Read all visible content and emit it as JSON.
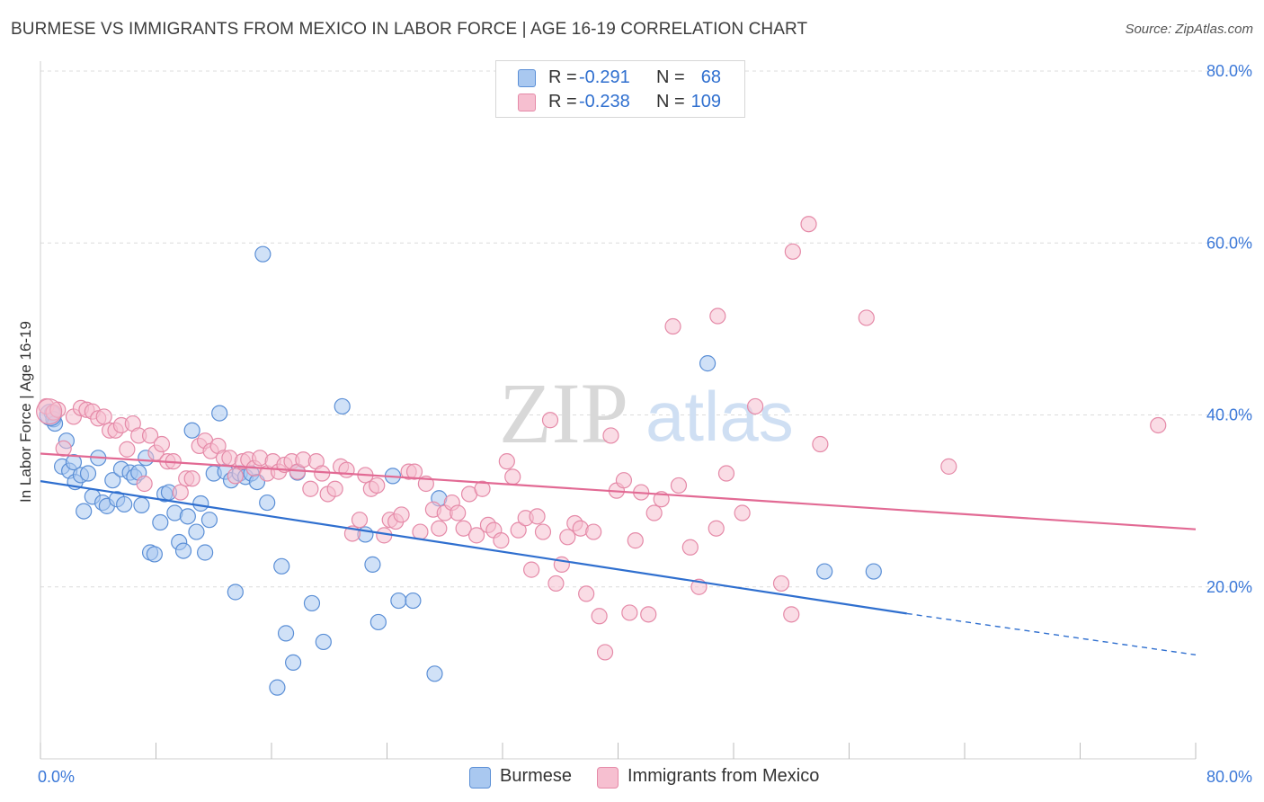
{
  "header": {
    "title": "BURMESE VS IMMIGRANTS FROM MEXICO IN LABOR FORCE | AGE 16-19 CORRELATION CHART",
    "source": "Source: ZipAtlas.com"
  },
  "watermark": {
    "zip": "ZIP",
    "atlas": "atlas"
  },
  "legend": {
    "rows": [
      {
        "r_label": "R =",
        "r_value": "-0.291",
        "n_label": "N =",
        "n_value": "68"
      },
      {
        "r_label": "R =",
        "r_value": "-0.238",
        "n_label": "N =",
        "n_value": "109"
      }
    ]
  },
  "colors": {
    "blue_fill": "#a9c8f0",
    "blue_stroke": "#5b8fd6",
    "blue_line": "#2f6fcf",
    "pink_fill": "#f6bfd0",
    "pink_stroke": "#e58aa8",
    "pink_line": "#e26a94",
    "grid": "#dcdcdc",
    "axis_text": "#3b78d8"
  },
  "chart_data": {
    "type": "scatter",
    "title": "BURMESE VS IMMIGRANTS FROM MEXICO IN LABOR FORCE | AGE 16-19 CORRELATION CHART",
    "xlabel": "",
    "ylabel": "In Labor Force | Age 16-19",
    "xlim": [
      0,
      80
    ],
    "ylim": [
      0,
      80
    ],
    "x_tick_labels": [
      "0.0%",
      "80.0%"
    ],
    "y_ticks": [
      20,
      40,
      60,
      80
    ],
    "y_tick_labels": [
      "20.0%",
      "40.0%",
      "60.0%",
      "80.0%"
    ],
    "grid": true,
    "legend_position": "top-center",
    "series": [
      {
        "name": "Burmese",
        "r": -0.291,
        "n": 68,
        "trend": {
          "x": [
            0,
            60
          ],
          "y": [
            32.3,
            16.9
          ],
          "dashed_to": [
            80,
            12.1
          ]
        },
        "points": [
          [
            0.8,
            40.2
          ],
          [
            0.9,
            39.5
          ],
          [
            1.0,
            39.0
          ],
          [
            1.5,
            34.0
          ],
          [
            1.8,
            37.0
          ],
          [
            2.0,
            33.5
          ],
          [
            2.3,
            34.5
          ],
          [
            2.4,
            32.2
          ],
          [
            2.8,
            33.0
          ],
          [
            3.0,
            28.8
          ],
          [
            3.3,
            33.2
          ],
          [
            3.6,
            30.5
          ],
          [
            4.0,
            35.0
          ],
          [
            4.3,
            29.8
          ],
          [
            4.6,
            29.4
          ],
          [
            5.0,
            32.4
          ],
          [
            5.3,
            30.2
          ],
          [
            5.6,
            33.7
          ],
          [
            5.8,
            29.6
          ],
          [
            6.2,
            33.3
          ],
          [
            6.5,
            32.8
          ],
          [
            6.8,
            33.3
          ],
          [
            7.0,
            29.5
          ],
          [
            7.3,
            35.0
          ],
          [
            7.6,
            24.0
          ],
          [
            7.9,
            23.8
          ],
          [
            8.3,
            27.5
          ],
          [
            8.6,
            30.8
          ],
          [
            8.9,
            31.0
          ],
          [
            9.3,
            28.6
          ],
          [
            9.6,
            25.2
          ],
          [
            9.9,
            24.2
          ],
          [
            10.2,
            28.2
          ],
          [
            10.5,
            38.2
          ],
          [
            10.8,
            26.4
          ],
          [
            11.1,
            29.7
          ],
          [
            11.4,
            24.0
          ],
          [
            11.7,
            27.8
          ],
          [
            12.0,
            33.2
          ],
          [
            12.4,
            40.2
          ],
          [
            12.8,
            33.4
          ],
          [
            13.2,
            32.4
          ],
          [
            13.5,
            19.4
          ],
          [
            13.8,
            33.2
          ],
          [
            14.2,
            32.8
          ],
          [
            14.6,
            33.2
          ],
          [
            15.0,
            32.2
          ],
          [
            15.4,
            58.7
          ],
          [
            15.7,
            29.8
          ],
          [
            16.4,
            8.3
          ],
          [
            16.7,
            22.4
          ],
          [
            17.0,
            14.6
          ],
          [
            17.5,
            11.2
          ],
          [
            17.8,
            33.3
          ],
          [
            18.8,
            18.1
          ],
          [
            19.6,
            13.6
          ],
          [
            20.9,
            41.0
          ],
          [
            22.5,
            26.1
          ],
          [
            23.0,
            22.6
          ],
          [
            23.4,
            15.9
          ],
          [
            24.4,
            32.9
          ],
          [
            24.8,
            18.4
          ],
          [
            25.8,
            18.4
          ],
          [
            27.3,
            9.9
          ],
          [
            27.6,
            30.3
          ],
          [
            46.2,
            46.0
          ],
          [
            54.3,
            21.8
          ],
          [
            57.7,
            21.8
          ]
        ]
      },
      {
        "name": "Immigrants from Mexico",
        "r": -0.238,
        "n": 109,
        "trend": {
          "x": [
            0,
            80
          ],
          "y": [
            35.5,
            26.7
          ]
        },
        "points": [
          [
            0.4,
            41.0
          ],
          [
            0.9,
            40.3
          ],
          [
            1.2,
            40.6
          ],
          [
            1.6,
            36.1
          ],
          [
            2.3,
            39.8
          ],
          [
            2.8,
            40.8
          ],
          [
            3.2,
            40.6
          ],
          [
            3.6,
            40.4
          ],
          [
            4.0,
            39.6
          ],
          [
            4.4,
            39.8
          ],
          [
            4.8,
            38.2
          ],
          [
            5.2,
            38.2
          ],
          [
            5.6,
            38.8
          ],
          [
            6.0,
            36.0
          ],
          [
            6.4,
            39.0
          ],
          [
            6.8,
            37.6
          ],
          [
            7.2,
            32.0
          ],
          [
            7.6,
            37.6
          ],
          [
            8.0,
            35.6
          ],
          [
            8.4,
            36.6
          ],
          [
            8.8,
            34.6
          ],
          [
            9.2,
            34.6
          ],
          [
            9.7,
            31.0
          ],
          [
            10.1,
            32.6
          ],
          [
            10.5,
            32.6
          ],
          [
            11.0,
            36.4
          ],
          [
            11.4,
            37.0
          ],
          [
            11.8,
            35.8
          ],
          [
            12.3,
            36.4
          ],
          [
            12.7,
            35.0
          ],
          [
            13.1,
            35.0
          ],
          [
            13.5,
            32.9
          ],
          [
            14.0,
            34.6
          ],
          [
            14.4,
            34.8
          ],
          [
            14.8,
            33.8
          ],
          [
            15.2,
            35.0
          ],
          [
            15.7,
            33.2
          ],
          [
            16.1,
            34.6
          ],
          [
            16.5,
            33.4
          ],
          [
            16.9,
            34.2
          ],
          [
            17.4,
            34.6
          ],
          [
            17.8,
            33.4
          ],
          [
            18.2,
            34.8
          ],
          [
            18.7,
            31.4
          ],
          [
            19.1,
            34.6
          ],
          [
            19.5,
            33.2
          ],
          [
            19.9,
            30.8
          ],
          [
            20.4,
            31.4
          ],
          [
            20.8,
            34.0
          ],
          [
            21.2,
            33.6
          ],
          [
            21.6,
            26.2
          ],
          [
            22.1,
            27.8
          ],
          [
            22.5,
            33.0
          ],
          [
            22.9,
            31.4
          ],
          [
            23.3,
            31.8
          ],
          [
            23.8,
            26.0
          ],
          [
            24.2,
            27.8
          ],
          [
            24.6,
            27.6
          ],
          [
            25.0,
            28.4
          ],
          [
            25.5,
            33.4
          ],
          [
            25.9,
            33.4
          ],
          [
            26.3,
            26.4
          ],
          [
            26.7,
            32.0
          ],
          [
            27.2,
            29.0
          ],
          [
            27.6,
            26.8
          ],
          [
            28.0,
            28.6
          ],
          [
            28.5,
            29.8
          ],
          [
            28.9,
            28.6
          ],
          [
            29.3,
            26.8
          ],
          [
            29.7,
            30.8
          ],
          [
            30.2,
            26.0
          ],
          [
            30.6,
            31.4
          ],
          [
            31.0,
            27.2
          ],
          [
            31.4,
            26.6
          ],
          [
            31.9,
            25.4
          ],
          [
            32.3,
            34.6
          ],
          [
            32.7,
            32.8
          ],
          [
            33.1,
            26.6
          ],
          [
            33.6,
            28.0
          ],
          [
            34.0,
            22.0
          ],
          [
            34.4,
            28.2
          ],
          [
            34.8,
            26.4
          ],
          [
            35.3,
            39.4
          ],
          [
            35.7,
            20.4
          ],
          [
            36.1,
            22.6
          ],
          [
            36.5,
            25.8
          ],
          [
            37.0,
            27.4
          ],
          [
            37.4,
            26.8
          ],
          [
            37.8,
            19.2
          ],
          [
            38.3,
            26.4
          ],
          [
            38.7,
            16.6
          ],
          [
            39.1,
            12.4
          ],
          [
            39.5,
            37.6
          ],
          [
            39.9,
            31.2
          ],
          [
            40.4,
            32.4
          ],
          [
            40.8,
            17.0
          ],
          [
            41.2,
            25.4
          ],
          [
            41.6,
            31.0
          ],
          [
            42.1,
            16.8
          ],
          [
            42.5,
            28.6
          ],
          [
            43.0,
            30.2
          ],
          [
            44.2,
            31.8
          ],
          [
            45.0,
            24.6
          ],
          [
            45.6,
            20.0
          ],
          [
            46.8,
            26.8
          ],
          [
            47.5,
            33.2
          ],
          [
            48.6,
            28.6
          ],
          [
            49.5,
            41.0
          ],
          [
            51.3,
            20.4
          ],
          [
            52.0,
            16.8
          ]
        ]
      }
    ],
    "outlier_points_pink": [
      [
        43.8,
        50.3
      ],
      [
        46.9,
        51.5
      ],
      [
        52.1,
        59.0
      ],
      [
        53.2,
        62.2
      ],
      [
        54.0,
        36.6
      ],
      [
        57.2,
        51.3
      ],
      [
        62.9,
        34.0
      ],
      [
        77.4,
        38.8
      ]
    ]
  }
}
